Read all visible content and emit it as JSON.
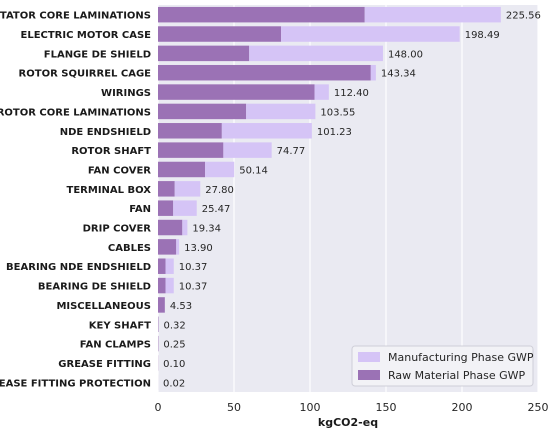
{
  "chart_data": {
    "type": "bar",
    "orientation": "horizontal",
    "stacked": true,
    "categories": [
      "STATOR CORE LAMINATIONS",
      "ELECTRIC MOTOR CASE",
      "FLANGE DE SHIELD",
      "ROTOR SQUIRREL CAGE",
      "WIRINGS",
      "ROTOR CORE LAMINATIONS",
      "NDE ENDSHIELD",
      "ROTOR SHAFT",
      "FAN COVER",
      "TERMINAL BOX",
      "FAN",
      "DRIP COVER",
      "CABLES",
      "BEARING NDE ENDSHIELD",
      "BEARING DE SHIELD",
      "MISCELLANEOUS",
      "KEY SHAFT",
      "FAN CLAMPS",
      "GREASE FITTING",
      "GREASE FITTING PROTECTION"
    ],
    "series": [
      {
        "name": "Raw Material Phase GWP",
        "color": "#9b72b5",
        "values": [
          136,
          81,
          60,
          140,
          103,
          58,
          42,
          43,
          31,
          11,
          10,
          16,
          12,
          5,
          5,
          4.5,
          0.3,
          0.25,
          0.1,
          0.02
        ]
      },
      {
        "name": "Manufacturing Phase GWP",
        "color": "#d5c4f6",
        "values": [
          89.56,
          117.49,
          88,
          3.34,
          9.4,
          45.55,
          59.23,
          31.77,
          19.14,
          16.8,
          15.47,
          3.34,
          1.9,
          5.37,
          5.37,
          0.03,
          0.02,
          0,
          0,
          0
        ]
      }
    ],
    "totals": [
      225.56,
      198.49,
      148.0,
      143.34,
      112.4,
      103.55,
      101.23,
      74.77,
      50.14,
      27.8,
      25.47,
      19.34,
      13.9,
      10.37,
      10.37,
      4.53,
      0.32,
      0.25,
      0.1,
      0.02
    ],
    "total_labels": [
      "225.56",
      "198.49",
      "148.00",
      "143.34",
      "112.40",
      "103.55",
      "101.23",
      "74.77",
      "50.14",
      "27.80",
      "25.47",
      "19.34",
      "13.90",
      "10.37",
      "10.37",
      "4.53",
      "0.32",
      "0.25",
      "0.10",
      "0.02"
    ],
    "xlabel": "kgCO2-eq",
    "ylabel": "",
    "xlim": [
      0,
      250
    ],
    "xticks": [
      0,
      50,
      100,
      150,
      200,
      250
    ],
    "grid": true,
    "legend_position": "bottom-right",
    "legend_order": [
      "Manufacturing Phase GWP",
      "Raw Material Phase GWP"
    ],
    "background_color": "#eaeaf2",
    "grid_color": "#ffffff"
  }
}
